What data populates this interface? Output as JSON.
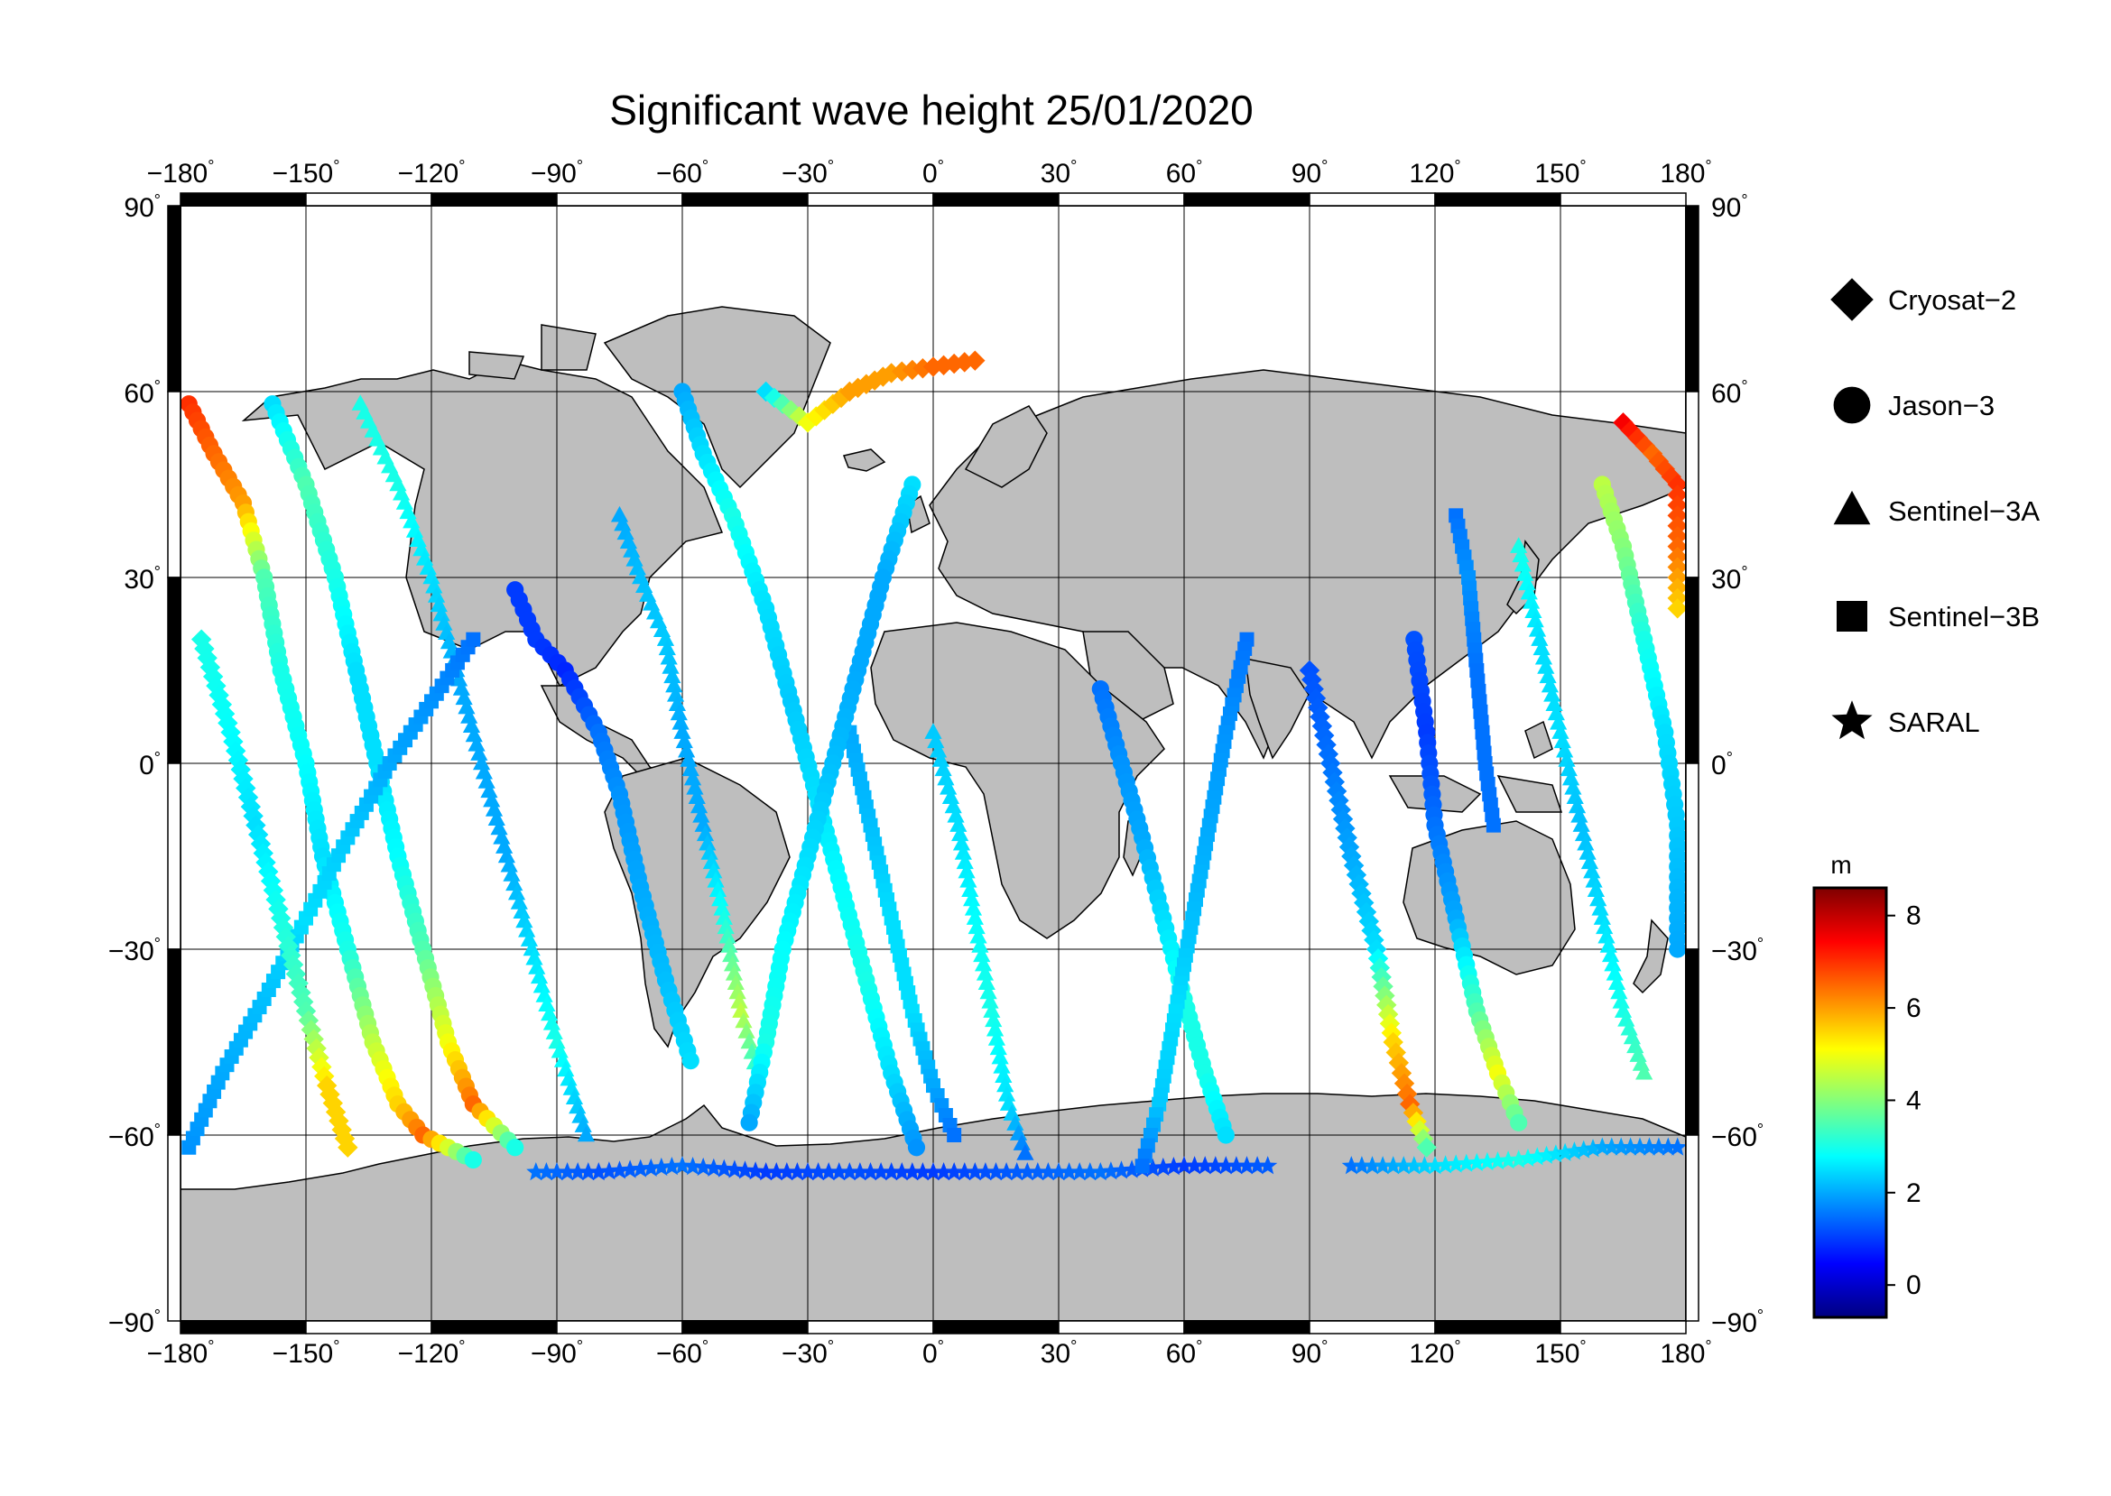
{
  "title": "Significant wave height 25/01/2020",
  "axes": {
    "lon_ticks": [
      "-180",
      "-150",
      "-120",
      "-90",
      "-60",
      "-30",
      "0",
      "30",
      "60",
      "90",
      "120",
      "150",
      "180"
    ],
    "lat_ticks": [
      "90",
      "60",
      "30",
      "0",
      "-30",
      "-60",
      "-90"
    ],
    "degree_symbol": "°",
    "lon_range": [
      -180,
      180
    ],
    "lat_range": [
      -90,
      90
    ],
    "grid": true
  },
  "legend": {
    "placement": "right",
    "items": [
      {
        "label": "Cryosat−2",
        "marker": "diamond"
      },
      {
        "label": "Jason−3",
        "marker": "circle"
      },
      {
        "label": "Sentinel−3A",
        "marker": "triangle"
      },
      {
        "label": "Sentinel−3B",
        "marker": "square"
      },
      {
        "label": "SARAL",
        "marker": "star"
      }
    ]
  },
  "colorbar": {
    "unit": "m",
    "range": [
      -0.7,
      8.6
    ],
    "ticks": [
      "0",
      "2",
      "4",
      "6",
      "8"
    ],
    "tick_values": [
      0,
      2,
      4,
      6,
      8
    ],
    "colormap": "jet"
  },
  "colors": {
    "land": "#bebebe",
    "ocean": "#ffffff",
    "coast": "#000000",
    "frame": "#000000"
  },
  "chart_data": {
    "type": "scatter",
    "variable": "significant wave height",
    "unit": "m",
    "xlim": [
      -180,
      180
    ],
    "ylim": [
      -90,
      90
    ],
    "tracks": [
      {
        "satellite": "Jason−3",
        "points": [
          [
            -178,
            58,
            7.0
          ],
          [
            -172,
            50,
            6.5
          ],
          [
            -165,
            42,
            6.0
          ],
          [
            -160,
            30,
            3.5
          ],
          [
            -156,
            15,
            3.0
          ],
          [
            -150,
            0,
            2.8
          ],
          [
            -146,
            -15,
            2.5
          ],
          [
            -140,
            -30,
            3.0
          ],
          [
            -134,
            -45,
            4.5
          ],
          [
            -128,
            -55,
            5.5
          ],
          [
            -122,
            -60,
            6.5
          ],
          [
            -110,
            -64,
            3.0
          ]
        ]
      },
      {
        "satellite": "Jason−3",
        "points": [
          [
            -158,
            58,
            2.5
          ],
          [
            -150,
            45,
            3.5
          ],
          [
            -143,
            30,
            3.0
          ],
          [
            -138,
            15,
            2.5
          ],
          [
            -133,
            0,
            2.5
          ],
          [
            -128,
            -15,
            2.8
          ],
          [
            -122,
            -30,
            3.5
          ],
          [
            -116,
            -45,
            5.0
          ],
          [
            -110,
            -55,
            6.5
          ],
          [
            -100,
            -62,
            3.0
          ]
        ]
      },
      {
        "satellite": "Sentinel−3A",
        "points": [
          [
            -137,
            58,
            3.0
          ],
          [
            -128,
            45,
            3.0
          ],
          [
            -120,
            30,
            2.5
          ],
          [
            -114,
            15,
            2.0
          ],
          [
            -108,
            0,
            2.0
          ],
          [
            -102,
            -15,
            2.0
          ],
          [
            -96,
            -30,
            2.5
          ],
          [
            -90,
            -45,
            3.0
          ],
          [
            -83,
            -60,
            2.0
          ]
        ]
      },
      {
        "satellite": "Sentinel−3B",
        "points": [
          [
            -178,
            -62,
            1.8
          ],
          [
            -170,
            -50,
            2.0
          ],
          [
            -160,
            -38,
            2.2
          ],
          [
            -150,
            -25,
            2.5
          ],
          [
            -140,
            -12,
            2.3
          ],
          [
            -130,
            0,
            2.0
          ],
          [
            -120,
            10,
            1.8
          ],
          [
            -110,
            20,
            1.5
          ]
        ]
      },
      {
        "satellite": "Cryosat−2",
        "points": [
          [
            -175,
            20,
            3.0
          ],
          [
            -168,
            5,
            2.8
          ],
          [
            -162,
            -10,
            2.5
          ],
          [
            -156,
            -25,
            3.0
          ],
          [
            -150,
            -40,
            3.5
          ],
          [
            -145,
            -52,
            5.5
          ],
          [
            -140,
            -62,
            5.5
          ]
        ]
      },
      {
        "satellite": "SARAL",
        "points": [
          [
            -95,
            -66,
            1.5
          ],
          [
            -80,
            -66,
            1.2
          ],
          [
            -60,
            -65,
            1.5
          ],
          [
            -40,
            -66,
            1.0
          ],
          [
            -20,
            -66,
            1.2
          ],
          [
            0,
            -66,
            1.0
          ],
          [
            20,
            -66,
            1.3
          ],
          [
            40,
            -66,
            1.5
          ],
          [
            60,
            -65,
            1.0
          ],
          [
            80,
            -65,
            1.3
          ]
        ]
      },
      {
        "satellite": "Jason−3",
        "points": [
          [
            -100,
            28,
            1.0
          ],
          [
            -95,
            20,
            1.0
          ],
          [
            -88,
            15,
            0.8
          ],
          [
            -80,
            5,
            1.5
          ],
          [
            -75,
            -5,
            1.8
          ],
          [
            -70,
            -20,
            2.0
          ],
          [
            -64,
            -35,
            2.2
          ],
          [
            -58,
            -48,
            2.5
          ]
        ]
      },
      {
        "satellite": "Sentinel−3A",
        "points": [
          [
            -75,
            40,
            2.0
          ],
          [
            -70,
            30,
            2.2
          ],
          [
            -64,
            20,
            2.3
          ],
          [
            -60,
            5,
            2.0
          ],
          [
            -55,
            -10,
            2.0
          ],
          [
            -50,
            -25,
            3.0
          ],
          [
            -46,
            -40,
            4.5
          ],
          [
            -42,
            -50,
            3.0
          ]
        ]
      },
      {
        "satellite": "Jason−3",
        "points": [
          [
            -60,
            60,
            2.0
          ],
          [
            -55,
            50,
            2.5
          ],
          [
            -48,
            40,
            3.0
          ],
          [
            -40,
            25,
            2.5
          ],
          [
            -34,
            10,
            2.3
          ],
          [
            -28,
            -5,
            2.5
          ],
          [
            -22,
            -20,
            2.8
          ],
          [
            -16,
            -35,
            3.0
          ],
          [
            -10,
            -50,
            2.5
          ],
          [
            -4,
            -62,
            1.8
          ]
        ]
      },
      {
        "satellite": "Cryosat−2",
        "points": [
          [
            -40,
            60,
            2.5
          ],
          [
            -30,
            55,
            5.0
          ],
          [
            -20,
            60,
            6.0
          ],
          [
            -10,
            63,
            6.0
          ],
          [
            0,
            64,
            6.5
          ],
          [
            10,
            65,
            6.5
          ]
        ]
      },
      {
        "satellite": "Sentinel−3B",
        "points": [
          [
            -20,
            5,
            2.0
          ],
          [
            -15,
            -10,
            2.2
          ],
          [
            -10,
            -25,
            2.5
          ],
          [
            -5,
            -40,
            2.5
          ],
          [
            0,
            -52,
            2.0
          ],
          [
            5,
            -60,
            1.5
          ]
        ]
      },
      {
        "satellite": "Jason−3",
        "points": [
          [
            -5,
            45,
            2.5
          ],
          [
            -12,
            30,
            2.0
          ],
          [
            -18,
            15,
            2.0
          ],
          [
            -24,
            0,
            2.2
          ],
          [
            -30,
            -15,
            2.5
          ],
          [
            -36,
            -30,
            2.8
          ],
          [
            -40,
            -45,
            3.0
          ],
          [
            -44,
            -58,
            2.0
          ]
        ]
      },
      {
        "satellite": "Sentinel−3A",
        "points": [
          [
            0,
            5,
            2.3
          ],
          [
            6,
            -10,
            2.5
          ],
          [
            10,
            -25,
            2.8
          ],
          [
            14,
            -40,
            3.0
          ],
          [
            18,
            -55,
            2.5
          ],
          [
            22,
            -63,
            1.5
          ]
        ]
      },
      {
        "satellite": "Jason−3",
        "points": [
          [
            40,
            12,
            1.5
          ],
          [
            45,
            0,
            1.8
          ],
          [
            50,
            -12,
            2.0
          ],
          [
            55,
            -25,
            2.5
          ],
          [
            60,
            -38,
            3.0
          ],
          [
            65,
            -50,
            3.0
          ],
          [
            70,
            -60,
            2.5
          ]
        ]
      },
      {
        "satellite": "Sentinel−3B",
        "points": [
          [
            75,
            20,
            1.5
          ],
          [
            70,
            5,
            1.8
          ],
          [
            66,
            -10,
            2.0
          ],
          [
            62,
            -25,
            2.2
          ],
          [
            58,
            -40,
            2.5
          ],
          [
            54,
            -55,
            2.3
          ],
          [
            50,
            -65,
            1.5
          ]
        ]
      },
      {
        "satellite": "Cryosat−2",
        "points": [
          [
            90,
            15,
            1.2
          ],
          [
            95,
            0,
            1.5
          ],
          [
            100,
            -15,
            2.0
          ],
          [
            106,
            -30,
            2.5
          ],
          [
            110,
            -45,
            5.5
          ],
          [
            114,
            -55,
            6.5
          ],
          [
            118,
            -62,
            3.5
          ]
        ]
      },
      {
        "satellite": "Jason−3",
        "points": [
          [
            115,
            20,
            1.2
          ],
          [
            118,
            5,
            1.0
          ],
          [
            120,
            -10,
            1.5
          ],
          [
            125,
            -25,
            2.0
          ],
          [
            130,
            -40,
            3.5
          ],
          [
            135,
            -50,
            5.0
          ],
          [
            140,
            -58,
            3.5
          ]
        ]
      },
      {
        "satellite": "Sentinel−3A",
        "points": [
          [
            140,
            35,
            3.0
          ],
          [
            145,
            20,
            2.5
          ],
          [
            150,
            5,
            2.5
          ],
          [
            155,
            -10,
            2.2
          ],
          [
            160,
            -25,
            2.5
          ],
          [
            165,
            -40,
            3.0
          ],
          [
            170,
            -50,
            3.5
          ]
        ]
      },
      {
        "satellite": "Jason−3",
        "points": [
          [
            160,
            45,
            4.5
          ],
          [
            165,
            35,
            4.0
          ],
          [
            170,
            20,
            3.0
          ],
          [
            175,
            5,
            2.5
          ],
          [
            178,
            -10,
            2.3
          ],
          [
            178,
            -30,
            2.0
          ]
        ]
      },
      {
        "satellite": "Cryosat−2",
        "points": [
          [
            165,
            55,
            7.5
          ],
          [
            172,
            50,
            6.5
          ],
          [
            178,
            45,
            7.0
          ],
          [
            178,
            35,
            6.5
          ],
          [
            178,
            25,
            5.5
          ]
        ]
      },
      {
        "satellite": "Sentinel−3B",
        "points": [
          [
            125,
            40,
            1.5
          ],
          [
            128,
            30,
            1.8
          ],
          [
            130,
            15,
            1.5
          ],
          [
            132,
            0,
            1.5
          ],
          [
            134,
            -10,
            1.5
          ]
        ]
      },
      {
        "satellite": "SARAL",
        "points": [
          [
            100,
            -65,
            1.5
          ],
          [
            120,
            -65,
            2.5
          ],
          [
            140,
            -64,
            3.0
          ],
          [
            160,
            -62,
            2.0
          ],
          [
            178,
            -62,
            1.5
          ]
        ]
      }
    ]
  }
}
